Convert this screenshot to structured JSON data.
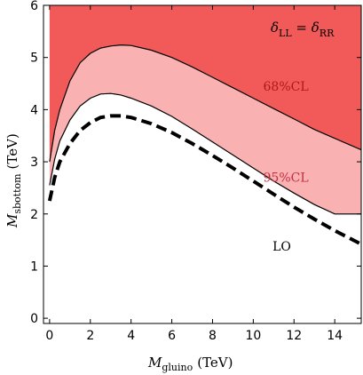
{
  "chart_data": {
    "type": "area",
    "xlabel": {
      "symbol": "M",
      "subscript": "gluino",
      "unit": "(TeV)"
    },
    "ylabel": {
      "symbol": "M",
      "subscript": "sbottom",
      "unit": "(TeV)"
    },
    "xlim": [
      -0.3,
      15.3
    ],
    "ylim": [
      -0.1,
      6.0
    ],
    "xticks": [
      0,
      2,
      4,
      6,
      8,
      10,
      12,
      14
    ],
    "yticks": [
      0,
      1,
      2,
      3,
      4,
      5,
      6
    ],
    "grid": false,
    "colors": {
      "cl68": "#f25a5a",
      "cl95": "#fab1b1",
      "cl68_text": "#b01818",
      "cl95_text": "#c03040"
    },
    "formula": {
      "left": "δ",
      "left_sub": "LL",
      "eq": " = ",
      "right": "δ",
      "right_sub": "RR"
    },
    "regions": [
      {
        "name": "68%CL",
        "fill": "cl68",
        "lower_boundary": {
          "x": [
            0,
            0.25,
            0.5,
            1,
            1.5,
            2,
            2.5,
            3,
            3.5,
            4,
            5,
            6,
            7,
            8,
            9,
            10,
            11,
            12,
            13,
            14,
            15.3
          ],
          "y": [
            3.0,
            3.6,
            4.0,
            4.55,
            4.9,
            5.08,
            5.18,
            5.22,
            5.24,
            5.23,
            5.14,
            5.0,
            4.82,
            4.62,
            4.42,
            4.22,
            4.02,
            3.82,
            3.62,
            3.45,
            3.23
          ]
        }
      },
      {
        "name": "95%CL",
        "fill": "cl95",
        "lower_boundary": {
          "x": [
            0,
            0.25,
            0.5,
            1,
            1.5,
            2,
            2.5,
            3,
            3.5,
            4,
            5,
            6,
            7,
            8,
            9,
            10,
            11,
            12,
            13,
            14,
            15.3
          ],
          "y": [
            2.55,
            3.05,
            3.4,
            3.8,
            4.07,
            4.22,
            4.3,
            4.31,
            4.28,
            4.22,
            4.07,
            3.87,
            3.63,
            3.38,
            3.13,
            2.88,
            2.63,
            2.4,
            2.18,
            2.0,
            2.0
          ]
        }
      }
    ],
    "series": [
      {
        "name": "LO",
        "style": "dashed",
        "x": [
          0,
          0.25,
          0.5,
          1,
          1.5,
          2,
          2.5,
          3,
          3.5,
          4,
          5,
          6,
          7,
          8,
          9,
          10,
          11,
          12,
          13,
          14,
          15.3
        ],
        "y": [
          2.25,
          2.7,
          3.0,
          3.35,
          3.6,
          3.75,
          3.85,
          3.88,
          3.88,
          3.85,
          3.73,
          3.56,
          3.35,
          3.12,
          2.88,
          2.63,
          2.38,
          2.13,
          1.9,
          1.68,
          1.42
        ]
      }
    ],
    "annotations": [
      {
        "text": "68%CL",
        "x": 11.6,
        "y": 4.45,
        "color": "cl68_text"
      },
      {
        "text": "95%CL",
        "x": 11.6,
        "y": 2.7,
        "color": "cl95_text"
      },
      {
        "text": "LO",
        "x": 11.4,
        "y": 1.38,
        "color": "#000000"
      }
    ]
  }
}
